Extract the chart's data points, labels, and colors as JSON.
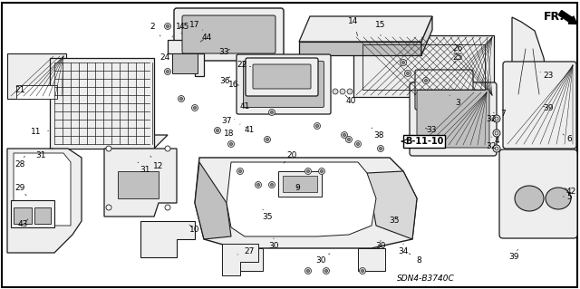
{
  "background_color": "#ffffff",
  "border_color": "#000000",
  "diagram_code": "SDN4-B3740C",
  "ref_code": "B-11-10",
  "fr_label": "FR.",
  "line_color": "#1a1a1a",
  "text_color": "#000000",
  "font_size": 6.5,
  "border_width": 1.2,
  "gray_fill": "#d8d8d8",
  "light_gray": "#eeeeee",
  "mid_gray": "#c0c0c0",
  "dark_gray": "#888888"
}
